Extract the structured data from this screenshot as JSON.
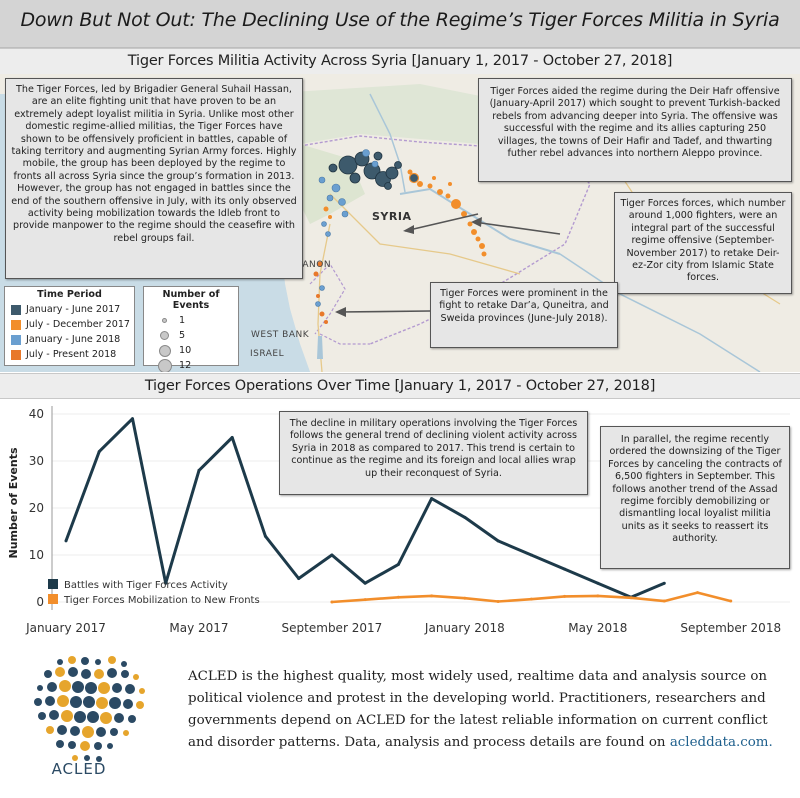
{
  "banner": {
    "title": "Down But Not Out: The Declining Use of the Regime’s Tiger Forces Militia in Syria"
  },
  "map_section": {
    "title": "Tiger Forces Militia Activity Across Syria [January 1, 2017 - October 27, 2018]",
    "labels": {
      "syria": "SYRIA",
      "lebanon": "LEBANON",
      "west_bank": "WEST BANK",
      "israel": "ISRAEL"
    },
    "callouts": {
      "intro": "The Tiger Forces, led by Brigadier General Suhail Hassan, are an elite fighting unit that have proven to be an extremely adept loyalist militia in Syria. Unlike most other domestic regime-allied militias, the Tiger Forces have shown to be offensively proficient in battles, capable of taking territory and augmenting Syrian Army forces. Highly mobile, the group has been deployed by the regime to fronts all across Syria since the group’s formation in 2013. However, the group has not engaged in battles since the end of the southern offensive in July,  with its only observed activity being mobilization towards the Idleb front to provide manpower to the regime should the ceasefire with rebel groups fail.",
      "deir_hafr": "Tiger Forces aided the regime during the Deir Hafr offensive (January-April 2017) which sought to prevent Turkish-backed rebels from advancing deeper into Syria. The offensive was successful with the regime and its allies capturing 250 villages, the towns of Deir Hafir and Tadef, and thwarting futher rebel advances into northern Aleppo province.",
      "deir_ez_zor": "Tiger Forces forces, which number around 1,000 fighters, were an integral part of the successful regime offensive (September-November 2017) to retake Deir-ez-Zor city from Islamic State forces.",
      "south": "Tiger Forces were prominent in the fight to retake Dar’a, Quneitra, and Sweida provinces (June-July 2018)."
    },
    "legend_time": {
      "title": "Time Period",
      "items": [
        {
          "label": "January - June 2017",
          "color": "#3d5a6c"
        },
        {
          "label": "July - December 2017",
          "color": "#f28e2b"
        },
        {
          "label": "January - June 2018",
          "color": "#6a9fd0"
        },
        {
          "label": "July - Present 2018",
          "color": "#e8782a"
        }
      ]
    },
    "legend_size": {
      "title": "Number of Events",
      "items": [
        {
          "label": "1"
        },
        {
          "label": "5"
        },
        {
          "label": "10"
        },
        {
          "label": "12"
        }
      ]
    }
  },
  "ops_section": {
    "title": "Tiger Forces Operations Over Time [January 1, 2017 - October 27, 2018]",
    "callout_decline": "The decline in military operations involving the Tiger Forces follows the general trend of declining violent activity across Syria in 2018 as compared to 2017. This trend is certain to continue as the regime and its foreign and local allies wrap up their reconquest of Syria.",
    "callout_parallel": "In parallel, the regime recently ordered the downsizing of the Tiger Forces by canceling  the contracts of 6,500 fighters in September. This follows another trend of the Assad regime forcibly demobilizing or dismantling local loyalist militia units as it seeks to reassert its authority."
  },
  "chart_data": {
    "type": "line",
    "title": "Tiger Forces Operations Over Time [January 1, 2017 - October 27, 2018]",
    "xlabel": "",
    "ylabel": "Number of Events",
    "ylim": [
      0,
      40
    ],
    "yticks": [
      0,
      10,
      20,
      30,
      40
    ],
    "xtick_labels": [
      "January 2017",
      "May 2017",
      "September 2017",
      "January 2018",
      "May 2018",
      "September 2018"
    ],
    "x": [
      "2017-01",
      "2017-02",
      "2017-03",
      "2017-04",
      "2017-05",
      "2017-06",
      "2017-07",
      "2017-08",
      "2017-09",
      "2017-10",
      "2017-11",
      "2017-12",
      "2018-01",
      "2018-02",
      "2018-03",
      "2018-04",
      "2018-05",
      "2018-06",
      "2018-07",
      "2018-08",
      "2018-09",
      "2018-10"
    ],
    "series": [
      {
        "name": "Battles with Tiger Forces Activity",
        "color": "#1d3a4a",
        "values": [
          13,
          32,
          39,
          4,
          28,
          35,
          14,
          5,
          10,
          4,
          8,
          22,
          18,
          13,
          10,
          7,
          4,
          1,
          4,
          null,
          null,
          null
        ]
      },
      {
        "name": "Tiger Forces Mobilization to New Fronts",
        "color": "#f28e2b",
        "values": [
          null,
          null,
          null,
          null,
          null,
          null,
          null,
          null,
          0,
          0.5,
          1,
          1.3,
          0.8,
          0.1,
          0.6,
          1.2,
          1.3,
          0.9,
          0.2,
          2,
          0.2,
          null
        ]
      }
    ],
    "legend_position": "bottom-left"
  },
  "footer": {
    "text": "ACLED is the highest quality, most widely used, realtime data and analysis source on political violence and protest in the developing world. Practitioners, researchers and governments depend on ACLED for the latest reliable information on current conflict and disorder patterns. Data, analysis and process details are found on ",
    "link": "acleddata.com.",
    "brand": "ACLED"
  }
}
